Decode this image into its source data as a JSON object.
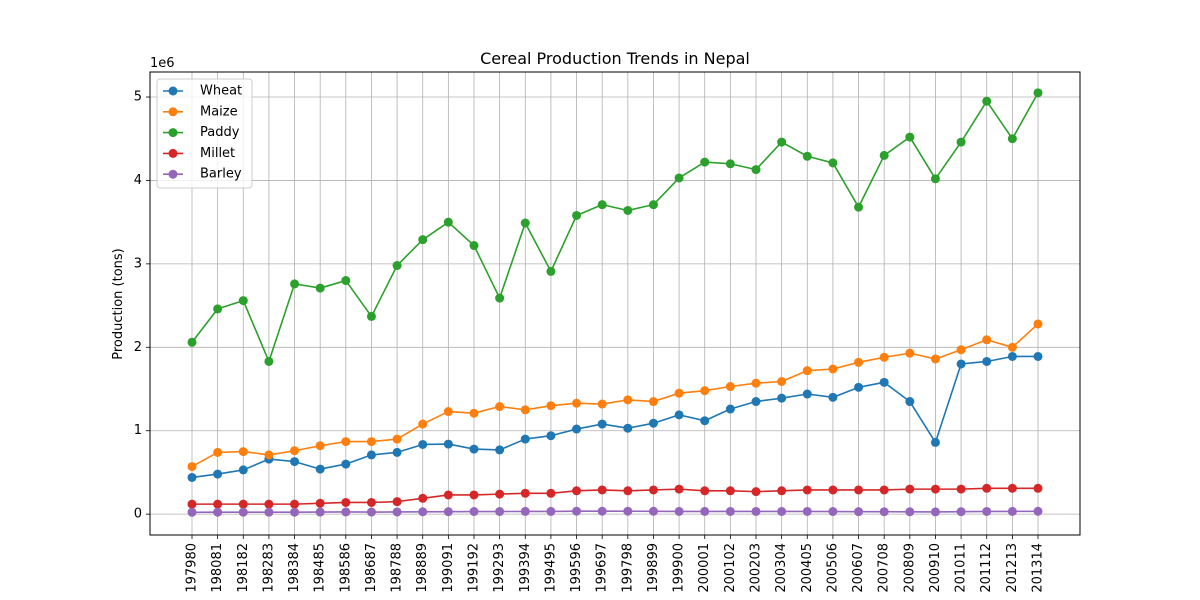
{
  "chart_data": {
    "type": "line",
    "title": "Cereal Production Trends in Nepal",
    "xlabel": "",
    "ylabel": "Production (tons)",
    "y_scale_label": "1e6",
    "ylim": [
      -250000,
      5300000
    ],
    "yticks": [
      0,
      1000000,
      2000000,
      3000000,
      4000000,
      5000000
    ],
    "ytick_labels": [
      "0",
      "1",
      "2",
      "3",
      "4",
      "5"
    ],
    "grid": true,
    "legend_position": "upper-left",
    "categories": [
      "197980",
      "198081",
      "198182",
      "198283",
      "198384",
      "198485",
      "198586",
      "198687",
      "198788",
      "198889",
      "199091",
      "199192",
      "199293",
      "199394",
      "199495",
      "199596",
      "199697",
      "199798",
      "199899",
      "199900",
      "200001",
      "200102",
      "200203",
      "200304",
      "200405",
      "200506",
      "200607",
      "200708",
      "200809",
      "200910",
      "201011",
      "201112",
      "201213",
      "201314"
    ],
    "series": [
      {
        "name": "Wheat",
        "color": "#1f77b4",
        "values": [
          440000,
          480000,
          530000,
          660000,
          630000,
          540000,
          600000,
          710000,
          740000,
          835000,
          840000,
          780000,
          770000,
          900000,
          940000,
          1020000,
          1080000,
          1030000,
          1090000,
          1190000,
          1120000,
          1260000,
          1350000,
          1390000,
          1440000,
          1400000,
          1520000,
          1580000,
          1350000,
          860000,
          1800000,
          1830000,
          1890000,
          1890000
        ]
      },
      {
        "name": "Maize",
        "color": "#ff7f0e",
        "values": [
          570000,
          740000,
          750000,
          710000,
          760000,
          820000,
          870000,
          870000,
          900000,
          1080000,
          1230000,
          1210000,
          1290000,
          1250000,
          1300000,
          1330000,
          1320000,
          1370000,
          1350000,
          1450000,
          1480000,
          1530000,
          1570000,
          1590000,
          1720000,
          1740000,
          1820000,
          1880000,
          1930000,
          1860000,
          1970000,
          2090000,
          2000000,
          2280000
        ]
      },
      {
        "name": "Paddy",
        "color": "#2ca02c",
        "values": [
          2060000,
          2460000,
          2560000,
          1830000,
          2760000,
          2710000,
          2800000,
          2370000,
          2980000,
          3290000,
          3500000,
          3220000,
          2590000,
          3490000,
          2910000,
          3580000,
          3710000,
          3640000,
          3710000,
          4030000,
          4220000,
          4200000,
          4130000,
          4460000,
          4290000,
          4210000,
          3680000,
          4300000,
          4520000,
          4020000,
          4460000,
          4950000,
          4500000,
          5050000
        ]
      },
      {
        "name": "Millet",
        "color": "#d62728",
        "values": [
          120000,
          120000,
          120000,
          120000,
          120000,
          130000,
          140000,
          140000,
          150000,
          190000,
          230000,
          230000,
          240000,
          250000,
          250000,
          280000,
          290000,
          280000,
          290000,
          300000,
          280000,
          280000,
          270000,
          280000,
          290000,
          290000,
          290000,
          290000,
          300000,
          300000,
          300000,
          310000,
          310000,
          310000
        ]
      },
      {
        "name": "Barley",
        "color": "#9467bd",
        "values": [
          22000,
          23000,
          23000,
          24000,
          23000,
          25000,
          26000,
          25000,
          26000,
          28000,
          30000,
          31000,
          31000,
          33000,
          33000,
          35000,
          35000,
          35000,
          34000,
          33000,
          33000,
          32000,
          32000,
          32000,
          32000,
          31000,
          30000,
          29000,
          28000,
          27000,
          30000,
          32000,
          33000,
          34000
        ]
      }
    ]
  }
}
